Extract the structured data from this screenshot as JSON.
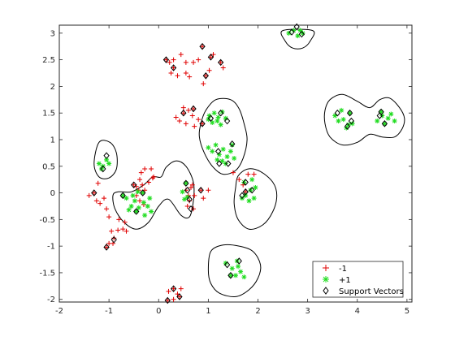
{
  "chart_data": {
    "type": "scatter",
    "title": "",
    "xlabel": "",
    "ylabel": "",
    "xlim": [
      -2,
      5.1
    ],
    "ylim": [
      -2.05,
      3.15
    ],
    "x_ticks": [
      -2,
      -1,
      0,
      1,
      2,
      3,
      4,
      5
    ],
    "y_ticks": [
      -2,
      -1.5,
      -1,
      -0.5,
      0,
      0.5,
      1,
      1.5,
      2,
      2.5,
      3
    ],
    "x_tick_labels": [
      "-2",
      "-1",
      "0",
      "1",
      "2",
      "3",
      "4",
      "5"
    ],
    "y_tick_labels": [
      "-2",
      "-1.5",
      "-1",
      "-0.5",
      "0",
      "0.5",
      "1",
      "1.5",
      "2",
      "2.5",
      "3"
    ],
    "grid": false,
    "legend_position": "bottom-right",
    "series": [
      {
        "name": "-1",
        "marker": "plus",
        "color": "#e00000",
        "points": [
          [
            -1.4,
            -0.05
          ],
          [
            -1.3,
            0.0
          ],
          [
            -1.22,
            0.18
          ],
          [
            -1.18,
            -0.2
          ],
          [
            -1.1,
            -0.1
          ],
          [
            -1.25,
            -0.15
          ],
          [
            -1.05,
            -0.3
          ],
          [
            -1.0,
            -0.45
          ],
          [
            -0.95,
            -0.72
          ],
          [
            -0.9,
            -0.85
          ],
          [
            -0.92,
            -0.95
          ],
          [
            -1.0,
            -0.95
          ],
          [
            -1.05,
            -1.02
          ],
          [
            -0.82,
            -0.7
          ],
          [
            -0.72,
            -0.68
          ],
          [
            -0.65,
            -0.72
          ],
          [
            -0.8,
            -0.5
          ],
          [
            -0.68,
            -0.55
          ],
          [
            -0.5,
            0.15
          ],
          [
            -0.45,
            0.12
          ],
          [
            -0.38,
            0.25
          ],
          [
            -0.33,
            0.15
          ],
          [
            -0.28,
            0.05
          ],
          [
            -0.2,
            0.2
          ],
          [
            -0.12,
            0.28
          ],
          [
            -0.35,
            0.38
          ],
          [
            -0.28,
            0.45
          ],
          [
            -0.15,
            0.45
          ],
          [
            -0.1,
            0.3
          ],
          [
            -0.45,
            -0.05
          ],
          [
            -0.38,
            -0.15
          ],
          [
            -0.3,
            -0.22
          ],
          [
            -0.4,
            0.05
          ],
          [
            0.15,
            2.5
          ],
          [
            0.22,
            2.45
          ],
          [
            0.3,
            2.35
          ],
          [
            0.25,
            2.25
          ],
          [
            0.38,
            2.2
          ],
          [
            0.3,
            2.5
          ],
          [
            0.45,
            2.6
          ],
          [
            0.55,
            2.25
          ],
          [
            0.62,
            2.18
          ],
          [
            0.55,
            2.45
          ],
          [
            0.7,
            2.45
          ],
          [
            0.8,
            2.5
          ],
          [
            0.88,
            2.75
          ],
          [
            1.05,
            2.55
          ],
          [
            1.1,
            2.6
          ],
          [
            1.25,
            2.45
          ],
          [
            1.3,
            2.35
          ],
          [
            0.9,
            2.05
          ],
          [
            0.95,
            2.2
          ],
          [
            1.02,
            2.3
          ],
          [
            0.35,
            1.42
          ],
          [
            0.42,
            1.35
          ],
          [
            0.5,
            1.5
          ],
          [
            0.6,
            1.55
          ],
          [
            0.68,
            1.45
          ],
          [
            0.55,
            1.3
          ],
          [
            0.72,
            1.25
          ],
          [
            0.8,
            1.38
          ],
          [
            0.88,
            1.3
          ],
          [
            0.5,
            1.6
          ],
          [
            0.7,
            1.58
          ],
          [
            0.55,
            0.05
          ],
          [
            0.6,
            -0.05
          ],
          [
            0.62,
            -0.15
          ],
          [
            0.65,
            0.1
          ],
          [
            0.58,
            -0.25
          ],
          [
            0.7,
            -0.3
          ],
          [
            0.72,
            -0.05
          ],
          [
            0.68,
            0.15
          ],
          [
            0.85,
            0.05
          ],
          [
            0.9,
            -0.1
          ],
          [
            1.0,
            0.05
          ],
          [
            1.5,
            0.38
          ],
          [
            1.62,
            0.25
          ],
          [
            1.7,
            0.15
          ],
          [
            1.8,
            0.35
          ],
          [
            1.75,
            0.02
          ],
          [
            1.92,
            0.35
          ],
          [
            0.2,
            -1.85
          ],
          [
            0.3,
            -1.8
          ],
          [
            0.38,
            -1.9
          ],
          [
            0.45,
            -1.8
          ],
          [
            0.42,
            -1.95
          ],
          [
            0.3,
            -2.0
          ],
          [
            0.18,
            -2.02
          ]
        ]
      },
      {
        "name": "+1",
        "marker": "star",
        "color": "#22dd22",
        "points": [
          [
            2.62,
            3.0
          ],
          [
            2.72,
            3.05
          ],
          [
            2.8,
            2.95
          ],
          [
            2.85,
            3.05
          ],
          [
            2.9,
            3.0
          ],
          [
            3.55,
            1.45
          ],
          [
            3.68,
            1.55
          ],
          [
            3.72,
            1.38
          ],
          [
            3.82,
            1.28
          ],
          [
            3.9,
            1.3
          ],
          [
            3.85,
            1.5
          ],
          [
            3.78,
            1.22
          ],
          [
            3.62,
            1.35
          ],
          [
            4.4,
            1.35
          ],
          [
            4.5,
            1.45
          ],
          [
            4.55,
            1.3
          ],
          [
            4.62,
            1.4
          ],
          [
            4.48,
            1.52
          ],
          [
            4.68,
            1.48
          ],
          [
            4.75,
            1.35
          ],
          [
            1.02,
            1.45
          ],
          [
            1.12,
            1.5
          ],
          [
            1.2,
            1.42
          ],
          [
            1.28,
            1.52
          ],
          [
            1.18,
            1.35
          ],
          [
            1.35,
            1.4
          ],
          [
            1.25,
            1.28
          ],
          [
            1.08,
            1.32
          ],
          [
            1.0,
            1.38
          ],
          [
            1.0,
            0.85
          ],
          [
            1.08,
            0.78
          ],
          [
            1.15,
            0.9
          ],
          [
            1.22,
            0.72
          ],
          [
            1.3,
            0.82
          ],
          [
            1.38,
            0.68
          ],
          [
            1.45,
            0.78
          ],
          [
            1.35,
            0.55
          ],
          [
            1.28,
            0.6
          ],
          [
            1.18,
            0.62
          ],
          [
            1.48,
            0.9
          ],
          [
            1.52,
            0.65
          ],
          [
            1.75,
            -0.05
          ],
          [
            1.85,
            0.05
          ],
          [
            1.92,
            -0.1
          ],
          [
            1.95,
            0.1
          ],
          [
            1.82,
            -0.15
          ],
          [
            1.72,
            0.2
          ],
          [
            1.68,
            -0.1
          ],
          [
            1.88,
            0.25
          ],
          [
            -1.05,
            0.62
          ],
          [
            -1.12,
            0.5
          ],
          [
            -1.2,
            0.55
          ],
          [
            -1.15,
            0.45
          ],
          [
            -1.0,
            0.55
          ],
          [
            -0.72,
            -0.05
          ],
          [
            -0.65,
            -0.1
          ],
          [
            -0.55,
            -0.25
          ],
          [
            -0.48,
            -0.15
          ],
          [
            -0.4,
            -0.28
          ],
          [
            -0.3,
            -0.18
          ],
          [
            -0.22,
            -0.25
          ],
          [
            -0.18,
            -0.1
          ],
          [
            -0.32,
            0.0
          ],
          [
            -0.45,
            -0.35
          ],
          [
            -0.28,
            -0.42
          ],
          [
            -0.15,
            -0.35
          ],
          [
            -0.52,
            -0.05
          ],
          [
            -0.6,
            -0.32
          ],
          [
            -0.42,
            0.02
          ],
          [
            0.48,
            0.02
          ],
          [
            0.52,
            -0.12
          ],
          [
            0.58,
            -0.08
          ],
          [
            0.55,
            0.18
          ],
          [
            1.35,
            -1.32
          ],
          [
            1.48,
            -1.42
          ],
          [
            1.55,
            -1.55
          ],
          [
            1.65,
            -1.48
          ],
          [
            1.72,
            -1.58
          ],
          [
            1.6,
            -1.38
          ],
          [
            1.45,
            -1.55
          ],
          [
            1.58,
            -1.28
          ]
        ]
      },
      {
        "name": "Support Vectors",
        "marker": "diamond",
        "color": "#000000",
        "points": [
          [
            2.68,
            3.02
          ],
          [
            2.78,
            3.12
          ],
          [
            2.88,
            2.98
          ],
          [
            3.6,
            1.5
          ],
          [
            3.85,
            1.5
          ],
          [
            3.8,
            1.25
          ],
          [
            3.88,
            1.35
          ],
          [
            4.48,
            1.52
          ],
          [
            4.55,
            1.3
          ],
          [
            4.45,
            1.45
          ],
          [
            1.05,
            1.4
          ],
          [
            1.25,
            1.5
          ],
          [
            1.38,
            1.35
          ],
          [
            1.2,
            0.78
          ],
          [
            1.48,
            0.92
          ],
          [
            1.4,
            0.55
          ],
          [
            1.22,
            0.55
          ],
          [
            1.75,
            0.2
          ],
          [
            1.68,
            -0.05
          ],
          [
            1.88,
            0.05
          ],
          [
            -1.12,
            0.45
          ],
          [
            -1.05,
            0.7
          ],
          [
            -0.72,
            -0.05
          ],
          [
            -0.32,
            0.0
          ],
          [
            -0.45,
            -0.35
          ],
          [
            0.55,
            0.18
          ],
          [
            0.62,
            -0.12
          ],
          [
            0.58,
            0.05
          ],
          [
            0.65,
            -0.3
          ],
          [
            1.38,
            -1.35
          ],
          [
            1.45,
            -1.55
          ],
          [
            1.62,
            -1.28
          ],
          [
            0.15,
            2.5
          ],
          [
            0.3,
            2.35
          ],
          [
            0.88,
            2.75
          ],
          [
            1.05,
            2.55
          ],
          [
            1.25,
            2.45
          ],
          [
            0.95,
            2.2
          ],
          [
            0.5,
            1.5
          ],
          [
            0.7,
            1.58
          ],
          [
            0.88,
            1.3
          ],
          [
            -1.3,
            0.0
          ],
          [
            -1.05,
            -1.02
          ],
          [
            -0.9,
            -0.88
          ],
          [
            0.3,
            -1.8
          ],
          [
            0.42,
            -1.95
          ],
          [
            0.18,
            -2.02
          ],
          [
            1.75,
            0.02
          ],
          [
            0.85,
            0.05
          ],
          [
            -0.5,
            0.15
          ]
        ]
      }
    ],
    "decision_boundaries": [
      {
        "region": "top-center",
        "points": [
          [
            2.5,
            3.05
          ],
          [
            2.55,
            2.85
          ],
          [
            2.7,
            2.72
          ],
          [
            2.9,
            2.72
          ],
          [
            3.05,
            2.85
          ],
          [
            3.1,
            3.05
          ]
        ]
      },
      {
        "region": "right",
        "points": [
          [
            3.35,
            1.55
          ],
          [
            3.45,
            1.75
          ],
          [
            3.7,
            1.85
          ],
          [
            4.0,
            1.72
          ],
          [
            4.25,
            1.6
          ],
          [
            4.45,
            1.75
          ],
          [
            4.65,
            1.78
          ],
          [
            4.85,
            1.6
          ],
          [
            4.95,
            1.4
          ],
          [
            4.9,
            1.2
          ],
          [
            4.75,
            1.05
          ],
          [
            4.5,
            1.05
          ],
          [
            4.25,
            1.1
          ],
          [
            4.0,
            0.95
          ],
          [
            3.7,
            0.9
          ],
          [
            3.45,
            1.05
          ],
          [
            3.35,
            1.3
          ]
        ]
      },
      {
        "region": "center-upper",
        "points": [
          [
            0.95,
            1.55
          ],
          [
            1.15,
            1.75
          ],
          [
            1.45,
            1.75
          ],
          [
            1.62,
            1.58
          ],
          [
            1.72,
            1.3
          ],
          [
            1.78,
            1.0
          ],
          [
            1.7,
            0.65
          ],
          [
            1.55,
            0.42
          ],
          [
            1.3,
            0.35
          ],
          [
            1.1,
            0.48
          ],
          [
            0.92,
            0.75
          ],
          [
            0.82,
            1.05
          ],
          [
            0.85,
            1.3
          ]
        ]
      },
      {
        "region": "right-middle",
        "points": [
          [
            1.55,
            0.1
          ],
          [
            1.6,
            0.32
          ],
          [
            1.8,
            0.45
          ],
          [
            2.05,
            0.4
          ],
          [
            2.3,
            0.2
          ],
          [
            2.38,
            -0.05
          ],
          [
            2.3,
            -0.35
          ],
          [
            2.1,
            -0.6
          ],
          [
            1.82,
            -0.68
          ],
          [
            1.6,
            -0.5
          ],
          [
            1.52,
            -0.2
          ]
        ]
      },
      {
        "region": "left-small",
        "points": [
          [
            -1.3,
            0.55
          ],
          [
            -1.2,
            0.95
          ],
          [
            -0.98,
            0.95
          ],
          [
            -0.85,
            0.75
          ],
          [
            -0.85,
            0.45
          ],
          [
            -1.0,
            0.28
          ],
          [
            -1.2,
            0.3
          ]
        ]
      },
      {
        "region": "center-left",
        "points": [
          [
            -0.92,
            -0.05
          ],
          [
            -0.82,
            0.02
          ],
          [
            -0.55,
            0.02
          ],
          [
            -0.3,
            0.15
          ],
          [
            -0.12,
            0.3
          ],
          [
            0.05,
            0.3
          ],
          [
            0.15,
            0.48
          ],
          [
            0.35,
            0.6
          ],
          [
            0.55,
            0.5
          ],
          [
            0.7,
            0.2
          ],
          [
            0.7,
            -0.15
          ],
          [
            0.62,
            -0.45
          ],
          [
            0.45,
            -0.42
          ],
          [
            0.2,
            -0.12
          ],
          [
            0.0,
            -0.25
          ],
          [
            -0.2,
            -0.55
          ],
          [
            -0.45,
            -0.68
          ],
          [
            -0.7,
            -0.55
          ],
          [
            -0.88,
            -0.3
          ]
        ]
      },
      {
        "region": "bottom",
        "points": [
          [
            1.0,
            -1.45
          ],
          [
            1.05,
            -1.1
          ],
          [
            1.3,
            -0.98
          ],
          [
            1.62,
            -1.0
          ],
          [
            1.9,
            -1.1
          ],
          [
            2.05,
            -1.35
          ],
          [
            2.0,
            -1.6
          ],
          [
            1.82,
            -1.82
          ],
          [
            1.55,
            -1.95
          ],
          [
            1.22,
            -1.88
          ],
          [
            1.05,
            -1.7
          ]
        ]
      }
    ],
    "legend": [
      "-1",
      "+1",
      "Support Vectors"
    ]
  }
}
